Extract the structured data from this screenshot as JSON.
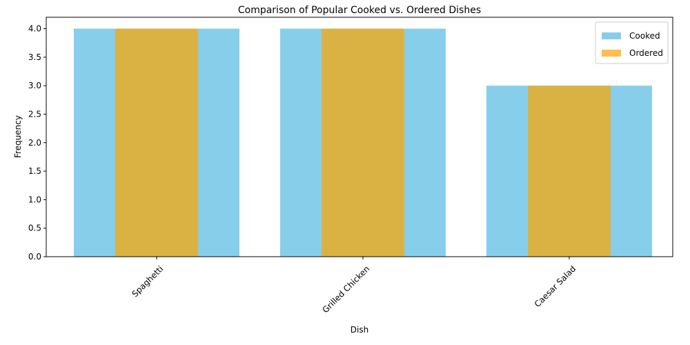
{
  "chart_data": {
    "type": "bar",
    "title": "Comparison of Popular Cooked vs. Ordered Dishes",
    "xlabel": "Dish",
    "ylabel": "Frequency",
    "categories": [
      "Spaghetti",
      "Grilled Chicken",
      "Caesar Salad"
    ],
    "series": [
      {
        "name": "Cooked",
        "values": [
          4,
          4,
          3
        ],
        "color": "#87ceeb"
      },
      {
        "name": "Ordered",
        "values": [
          4,
          4,
          3
        ],
        "color": "#ffbe4c"
      }
    ],
    "overlap_color": "#dab243",
    "ylim": [
      0,
      4.2
    ],
    "yticks": [
      "0.0",
      "0.5",
      "1.0",
      "1.5",
      "2.0",
      "2.5",
      "3.0",
      "3.5",
      "4.0"
    ],
    "legend": "top-right",
    "grid": false
  }
}
